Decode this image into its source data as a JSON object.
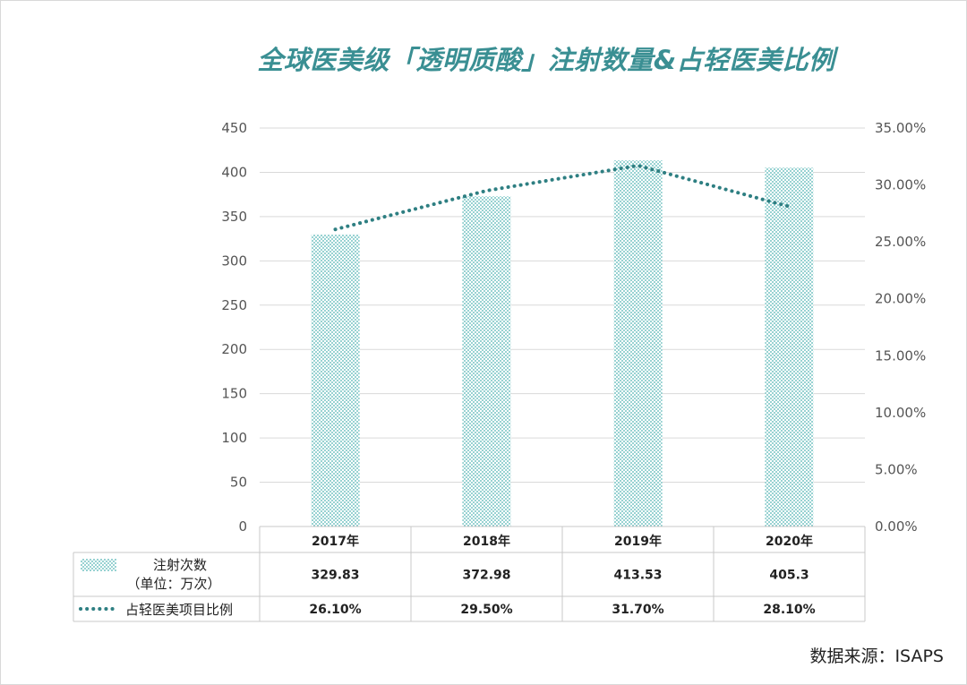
{
  "title": "全球医美级「透明质酸」注射数量&占轻医美比例",
  "source": "数据来源：ISAPS",
  "colors": {
    "title": "#3a8f93",
    "bar": "#4fb3b2",
    "line": "#2e7f82",
    "grid": "#d9d9d9",
    "table": "#c8c8c8"
  },
  "chart_data": {
    "type": "bar",
    "title": "全球医美级「透明质酸」注射数量&占轻医美比例",
    "categories": [
      "2017年",
      "2018年",
      "2019年",
      "2020年"
    ],
    "series": [
      {
        "name": "注射次数",
        "name_line2": "（单位：万次）",
        "type": "bar",
        "axis": "left",
        "values": [
          329.83,
          372.98,
          413.53,
          405.3
        ],
        "labels": [
          "329.83",
          "372.98",
          "413.53",
          "405.3"
        ]
      },
      {
        "name": "占轻医美项目比例",
        "type": "line",
        "axis": "right",
        "values": [
          26.1,
          29.5,
          31.7,
          28.1
        ],
        "labels": [
          "26.10%",
          "29.50%",
          "31.70%",
          "28.10%"
        ]
      }
    ],
    "y_left": {
      "min": 0,
      "max": 450,
      "ticks": [
        "0",
        "50",
        "100",
        "150",
        "200",
        "250",
        "300",
        "350",
        "400",
        "450"
      ]
    },
    "y_right": {
      "min": 0,
      "max": 35,
      "ticks": [
        "0.00%",
        "5.00%",
        "10.00%",
        "15.00%",
        "20.00%",
        "25.00%",
        "30.00%",
        "35.00%"
      ]
    },
    "grid": true,
    "legend": "data-table-left"
  }
}
